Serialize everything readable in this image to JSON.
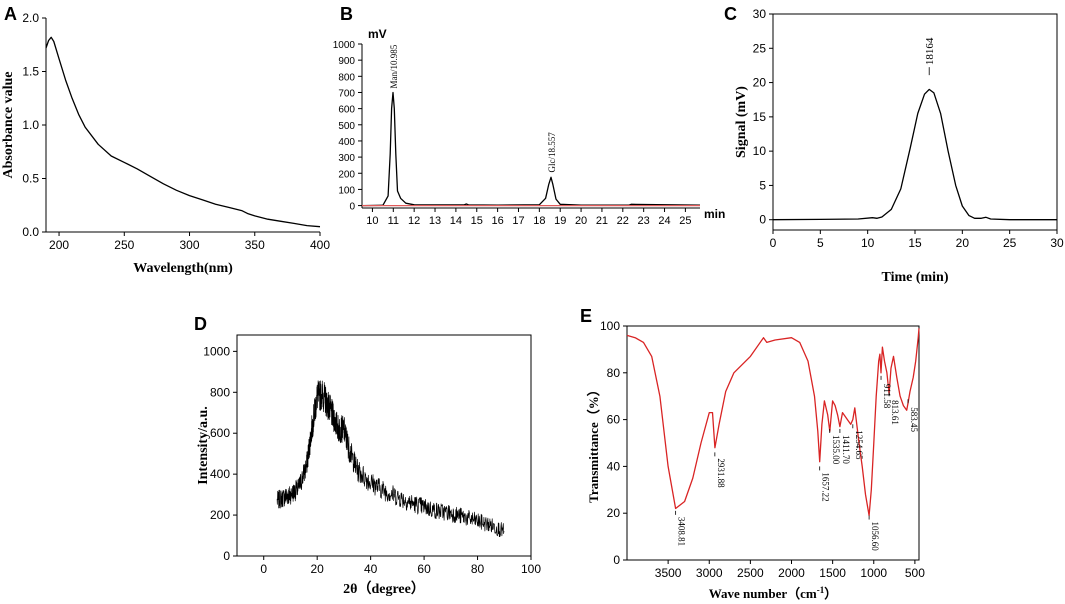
{
  "chart_data": [
    {
      "type": "line",
      "panel": "A",
      "title": "",
      "xlabel": "Wavelength(nm)",
      "ylabel": "Absorbance value",
      "xlim": [
        190,
        400
      ],
      "ylim": [
        0.0,
        2.0
      ],
      "xticks": [
        200,
        250,
        300,
        350,
        400
      ],
      "yticks": [
        0.0,
        0.5,
        1.0,
        1.5,
        2.0
      ],
      "xtick_labels": [
        "200",
        "250",
        "300",
        "350",
        "400"
      ],
      "ytick_labels": [
        "0.0",
        "0.5",
        "1.0",
        "1.5",
        "2.0"
      ],
      "series": [
        {
          "name": "UV absorbance",
          "color": "#000000",
          "x": [
            190,
            192,
            194,
            196,
            200,
            205,
            210,
            215,
            220,
            230,
            240,
            250,
            260,
            270,
            280,
            290,
            300,
            310,
            320,
            330,
            340,
            345,
            350,
            360,
            370,
            380,
            390,
            400
          ],
          "y": [
            1.72,
            1.79,
            1.82,
            1.78,
            1.62,
            1.42,
            1.25,
            1.1,
            0.98,
            0.82,
            0.71,
            0.65,
            0.59,
            0.52,
            0.45,
            0.39,
            0.34,
            0.3,
            0.26,
            0.23,
            0.2,
            0.17,
            0.15,
            0.12,
            0.1,
            0.08,
            0.06,
            0.05
          ]
        }
      ]
    },
    {
      "type": "line",
      "panel": "B",
      "title": "",
      "xlabel": "min",
      "ylabel": "mV",
      "xlim": [
        9.5,
        25.7
      ],
      "ylim": [
        -15,
        1000
      ],
      "xticks": [
        10,
        11,
        12,
        13,
        14,
        15,
        16,
        17,
        18,
        19,
        20,
        21,
        22,
        23,
        24,
        25
      ],
      "yticks": [
        0,
        100,
        200,
        300,
        400,
        500,
        600,
        700,
        800,
        900,
        1000
      ],
      "xtick_labels": [
        "10",
        "11",
        "12",
        "13",
        "14",
        "15",
        "16",
        "17",
        "18",
        "19",
        "20",
        "21",
        "22",
        "23",
        "24",
        "25"
      ],
      "ytick_labels": [
        "0",
        "100",
        "200",
        "300",
        "400",
        "500",
        "600",
        "700",
        "800",
        "900",
        "1000"
      ],
      "annotations": [
        {
          "text": "Man/10.985",
          "x": 10.985,
          "y": 700
        },
        {
          "text": "Glc/18.557",
          "x": 18.557,
          "y": 180
        }
      ],
      "series": [
        {
          "name": "PMP-HPLC chromatogram",
          "color": "#000000",
          "x": [
            9.5,
            10.5,
            10.75,
            10.85,
            10.92,
            10.985,
            11.05,
            11.12,
            11.2,
            11.35,
            11.6,
            12.0,
            13,
            14.4,
            14.5,
            14.6,
            16,
            18.0,
            18.3,
            18.45,
            18.557,
            18.65,
            18.8,
            19.0,
            20,
            22.3,
            22.4,
            25.7
          ],
          "y": [
            0,
            2,
            60,
            320,
            600,
            700,
            600,
            320,
            90,
            45,
            15,
            5,
            4,
            4,
            10,
            4,
            3,
            5,
            45,
            130,
            175,
            130,
            40,
            8,
            3,
            3,
            8,
            3
          ]
        },
        {
          "name": "baseline",
          "color": "#e05a5a",
          "x": [
            9.5,
            25.7
          ],
          "y": [
            0,
            0
          ]
        }
      ]
    },
    {
      "type": "line",
      "panel": "C",
      "title": "",
      "xlabel": "Time (min)",
      "ylabel": "Signal (mV)",
      "xlim": [
        0,
        30
      ],
      "ylim": [
        -1.5,
        30
      ],
      "xticks": [
        0,
        5,
        10,
        15,
        20,
        25,
        30
      ],
      "yticks": [
        0,
        5,
        10,
        15,
        20,
        25,
        30
      ],
      "xtick_labels": [
        "0",
        "5",
        "10",
        "15",
        "20",
        "25",
        "30"
      ],
      "ytick_labels": [
        "0",
        "5",
        "10",
        "15",
        "20",
        "25",
        "30"
      ],
      "annotations": [
        {
          "text": "18164",
          "x": 16.5,
          "y": 20.5
        }
      ],
      "series": [
        {
          "name": "GPC signal",
          "color": "#000000",
          "x": [
            0,
            5,
            9,
            10.5,
            11,
            11.5,
            12.5,
            13.5,
            14.5,
            15.3,
            16,
            16.5,
            17,
            17.7,
            18.5,
            19.3,
            20,
            20.7,
            21.3,
            22,
            22.5,
            23,
            25,
            30
          ],
          "y": [
            0,
            0.05,
            0.1,
            0.3,
            0.2,
            0.4,
            1.5,
            4.5,
            10.5,
            15.5,
            18.3,
            19.0,
            18.5,
            15.5,
            10.0,
            5.0,
            2.0,
            0.6,
            0.2,
            0.2,
            0.35,
            0.1,
            0.0,
            0.0
          ]
        }
      ]
    },
    {
      "type": "line",
      "panel": "D",
      "title": "",
      "xlabel": "2θ（degree）",
      "ylabel": "Intensity/a.u.",
      "xlim": [
        -10,
        100
      ],
      "ylim": [
        0,
        1080
      ],
      "xticks": [
        0,
        20,
        40,
        60,
        80,
        100
      ],
      "yticks": [
        0,
        200,
        400,
        600,
        800,
        1000
      ],
      "xtick_labels": [
        "0",
        "20",
        "40",
        "60",
        "80",
        "100"
      ],
      "ytick_labels": [
        "0",
        "200",
        "400",
        "600",
        "800",
        "1000"
      ],
      "noise_amplitude": 60,
      "series": [
        {
          "name": "XRD pattern",
          "color": "#000000",
          "x": [
            5,
            8,
            10,
            13,
            16,
            18,
            20,
            22,
            24,
            26,
            28,
            30,
            32,
            35,
            40,
            45,
            50,
            55,
            60,
            65,
            70,
            75,
            80,
            85,
            90
          ],
          "y": [
            270,
            290,
            300,
            330,
            440,
            620,
            780,
            790,
            740,
            680,
            620,
            620,
            520,
            420,
            360,
            320,
            290,
            260,
            240,
            220,
            210,
            190,
            170,
            150,
            120
          ]
        }
      ]
    },
    {
      "type": "line",
      "panel": "E",
      "title": "",
      "xlabel": "Wave number（cm",
      "xlabel_super": "-1",
      "xlabel_end": "）",
      "ylabel": "Transmittance（%）",
      "xlim": [
        4000,
        450
      ],
      "ylim": [
        0,
        100
      ],
      "xticks": [
        3500,
        3000,
        2500,
        2000,
        1500,
        1000,
        500
      ],
      "yticks": [
        0,
        20,
        40,
        60,
        80,
        100
      ],
      "xtick_labels": [
        "3500",
        "3000",
        "2500",
        "2000",
        "1500",
        "1000",
        "500"
      ],
      "ytick_labels": [
        "0",
        "20",
        "40",
        "60",
        "80",
        "100"
      ],
      "annotations": [
        {
          "text": "3408.81",
          "x": 3408.81,
          "y": 21
        },
        {
          "text": "2931.88",
          "x": 2931.88,
          "y": 46
        },
        {
          "text": "1657.22",
          "x": 1657.22,
          "y": 40
        },
        {
          "text": "1535.00",
          "x": 1535.0,
          "y": 56
        },
        {
          "text": "1411.70",
          "x": 1411.7,
          "y": 56
        },
        {
          "text": "1254.65",
          "x": 1254.65,
          "y": 58
        },
        {
          "text": "1056.60",
          "x": 1056.6,
          "y": 19
        },
        {
          "text": "911.58",
          "x": 911.58,
          "y": 77
        },
        {
          "text": "813.61",
          "x": 813.61,
          "y": 70
        },
        {
          "text": "583.45",
          "x": 583.45,
          "y": 67
        }
      ],
      "series": [
        {
          "name": "FT-IR spectrum",
          "color": "#d92424",
          "x": [
            4000,
            3900,
            3800,
            3700,
            3600,
            3500,
            3408.81,
            3300,
            3200,
            3100,
            3000,
            2960,
            2931.88,
            2880,
            2800,
            2700,
            2500,
            2340,
            2300,
            2200,
            2000,
            1900,
            1800,
            1720,
            1680,
            1657.22,
            1630,
            1600,
            1560,
            1535.0,
            1500,
            1470,
            1440,
            1411.7,
            1380,
            1320,
            1280,
            1254.65,
            1230,
            1180,
            1140,
            1100,
            1056.6,
            1030,
            1000,
            970,
            940,
            925,
            911.58,
            895,
            870,
            840,
            813.61,
            790,
            760,
            720,
            680,
            640,
            600,
            583.45,
            560,
            520,
            490,
            460,
            450
          ],
          "y": [
            96,
            95,
            93,
            87,
            70,
            40,
            22,
            25,
            35,
            50,
            63,
            63,
            48,
            58,
            72,
            80,
            87,
            95,
            93,
            94,
            95,
            93,
            85,
            70,
            55,
            42,
            58,
            68,
            62,
            55,
            68,
            66,
            62,
            57,
            63,
            60,
            58,
            60,
            65,
            50,
            40,
            28,
            19,
            30,
            50,
            70,
            85,
            88,
            80,
            91,
            85,
            80,
            71,
            82,
            87,
            78,
            70,
            66,
            64,
            67,
            72,
            78,
            85,
            95,
            99
          ]
        }
      ]
    }
  ]
}
